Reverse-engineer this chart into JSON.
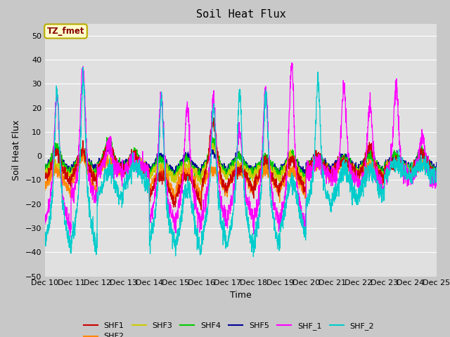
{
  "title": "Soil Heat Flux",
  "xlabel": "Time",
  "ylabel": "Soil Heat Flux",
  "ylim": [
    -50,
    55
  ],
  "xlim": [
    0,
    15
  ],
  "annotation_text": "TZ_fmet",
  "annotation_bg": "#ffffcc",
  "annotation_border": "#bbaa00",
  "annotation_text_color": "#880000",
  "series_colors": {
    "SHF1": "#cc0000",
    "SHF2": "#ff8800",
    "SHF3": "#cccc00",
    "SHF4": "#00cc00",
    "SHF5": "#000099",
    "SHF_1": "#ff00ff",
    "SHF_2": "#00cccc"
  },
  "xtick_labels": [
    "Dec 10",
    "Dec 11",
    "Dec 12",
    "Dec 13",
    "Dec 14",
    "Dec 15",
    "Dec 16",
    "Dec 17",
    "Dec 18",
    "Dec 19",
    "Dec 20",
    "Dec 21",
    "Dec 22",
    "Dec 23",
    "Dec 24",
    "Dec 25"
  ],
  "ytick_values": [
    -50,
    -40,
    -30,
    -20,
    -10,
    0,
    10,
    20,
    30,
    40,
    50
  ],
  "fig_facecolor": "#c8c8c8",
  "ax_facecolor": "#e0e0e0",
  "grid_color": "#ffffff"
}
